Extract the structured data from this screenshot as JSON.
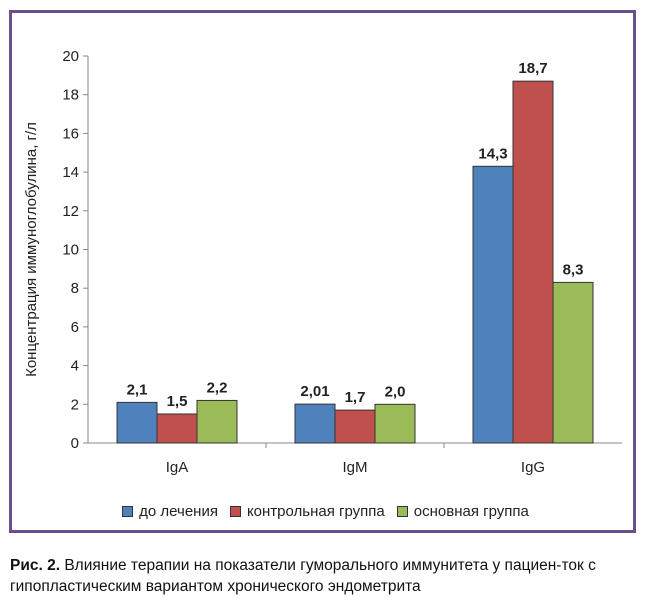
{
  "chart_data": {
    "type": "bar",
    "categories": [
      "IgA",
      "IgM",
      "IgG"
    ],
    "series": [
      {
        "name": "до лечения",
        "color": "#4f81bd",
        "values": [
          2.1,
          2.01,
          14.3
        ],
        "labels": [
          "2,1",
          "2,01",
          "14,3"
        ]
      },
      {
        "name": "контрольная группа",
        "color": "#c0504d",
        "values": [
          1.5,
          1.7,
          18.7
        ],
        "labels": [
          "1,5",
          "1,7",
          "18,7"
        ]
      },
      {
        "name": "основная группа",
        "color": "#9bbb59",
        "values": [
          2.2,
          2.0,
          8.3
        ],
        "labels": [
          "2,2",
          "2,0",
          "8,3"
        ]
      }
    ],
    "ylabel": "Концентрация иммуноглобулина, г/л",
    "xlabel": "",
    "ylim": [
      0,
      20
    ],
    "yticks": [
      0,
      2,
      4,
      6,
      8,
      10,
      12,
      14,
      16,
      18,
      20
    ],
    "grid": false,
    "legend_position": "bottom"
  },
  "caption": {
    "figure_label": "Рис. 2.",
    "text": " Влияние терапии на показатели гуморального иммунитета у пациен-ток с гипопластическим вариантом хронического эндометрита"
  }
}
